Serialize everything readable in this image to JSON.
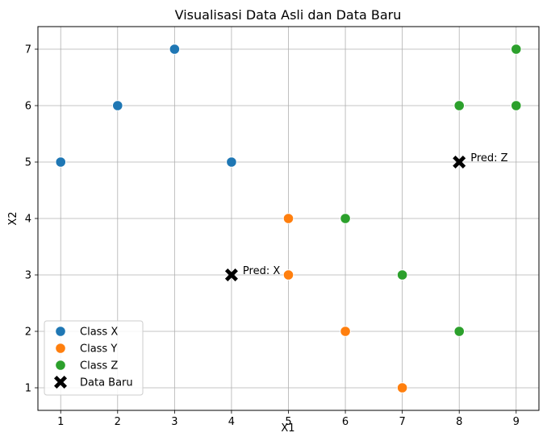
{
  "chart_data": {
    "type": "scatter",
    "title": "Visualisasi Data Asli dan Data Baru",
    "xlabel": "X1",
    "ylabel": "X2",
    "xlim": [
      0.6,
      9.4
    ],
    "ylim": [
      0.6,
      7.4
    ],
    "xticks": [
      1,
      2,
      3,
      4,
      5,
      6,
      7,
      8,
      9
    ],
    "yticks": [
      1,
      2,
      3,
      4,
      5,
      6,
      7
    ],
    "grid": true,
    "legend_position": "lower-left",
    "series": [
      {
        "name": "Class X",
        "color": "#1f77b4",
        "marker": "circle",
        "points": [
          [
            1,
            5
          ],
          [
            2,
            6
          ],
          [
            3,
            7
          ],
          [
            4,
            5
          ]
        ]
      },
      {
        "name": "Class Y",
        "color": "#ff7f0e",
        "marker": "circle",
        "points": [
          [
            5,
            4
          ],
          [
            5,
            3
          ],
          [
            6,
            2
          ],
          [
            7,
            1
          ]
        ]
      },
      {
        "name": "Class Z",
        "color": "#2ca02c",
        "marker": "circle",
        "points": [
          [
            6,
            4
          ],
          [
            7,
            3
          ],
          [
            8,
            2
          ],
          [
            8,
            6
          ],
          [
            9,
            6
          ],
          [
            9,
            7
          ]
        ]
      },
      {
        "name": "Data Baru",
        "color": "#000000",
        "marker": "x-filled",
        "points": [
          [
            4,
            3
          ],
          [
            8,
            5
          ]
        ]
      }
    ],
    "annotations": [
      {
        "text": "Pred: X",
        "x": 4,
        "y": 3
      },
      {
        "text": "Pred: Z",
        "x": 8,
        "y": 5
      }
    ]
  }
}
